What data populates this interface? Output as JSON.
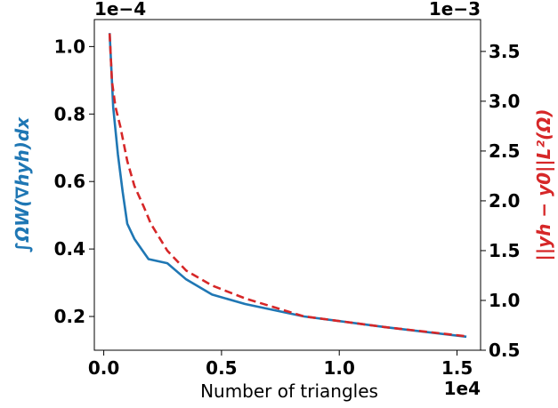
{
  "chart_data": {
    "type": "line",
    "xlabel": "Number of triangles",
    "x_offset_label": "1e4",
    "ylabel_left": "∫ΩW(∇hyh)dx",
    "ylabel_right": "||yh − y0||L²(Ω)",
    "left_offset_label": "1e−4",
    "right_offset_label": "1e−3",
    "xlim": [
      -0.04,
      1.6
    ],
    "ylim_left": [
      0.1,
      1.08
    ],
    "ylim_right": [
      0.5,
      3.82
    ],
    "x_ticks": [
      0.0,
      0.5,
      1.0,
      1.5
    ],
    "x_tick_labels": [
      "0.0",
      "0.5",
      "1.0",
      "1.5"
    ],
    "left_ticks": [
      0.2,
      0.4,
      0.6,
      0.8,
      1.0
    ],
    "left_tick_labels": [
      "0.2",
      "0.4",
      "0.6",
      "0.8",
      "1.0"
    ],
    "right_ticks": [
      0.5,
      1.0,
      1.5,
      2.0,
      2.5,
      3.0,
      3.5
    ],
    "right_tick_labels": [
      "0.5",
      "1.0",
      "1.5",
      "2.0",
      "2.5",
      "3.0",
      "3.5"
    ],
    "grid": false,
    "series": [
      {
        "axis": "left",
        "style": "solid",
        "color": "#1f77b4",
        "x": [
          0.025,
          0.04,
          0.06,
          0.08,
          0.1,
          0.13,
          0.16,
          0.19,
          0.27,
          0.35,
          0.46,
          0.6,
          0.85,
          1.2,
          1.54
        ],
        "y": [
          1.04,
          0.82,
          0.68,
          0.57,
          0.475,
          0.43,
          0.4,
          0.37,
          0.358,
          0.31,
          0.265,
          0.237,
          0.2,
          0.168,
          0.14
        ]
      },
      {
        "axis": "right",
        "style": "dashed",
        "color": "#d62728",
        "x": [
          0.025,
          0.035,
          0.05,
          0.07,
          0.1,
          0.13,
          0.17,
          0.2,
          0.27,
          0.35,
          0.46,
          0.6,
          0.85,
          1.2,
          1.54
        ],
        "y": [
          3.68,
          3.2,
          2.94,
          2.75,
          2.4,
          2.15,
          1.94,
          1.77,
          1.5,
          1.3,
          1.15,
          1.02,
          0.84,
          0.73,
          0.64
        ]
      }
    ]
  }
}
